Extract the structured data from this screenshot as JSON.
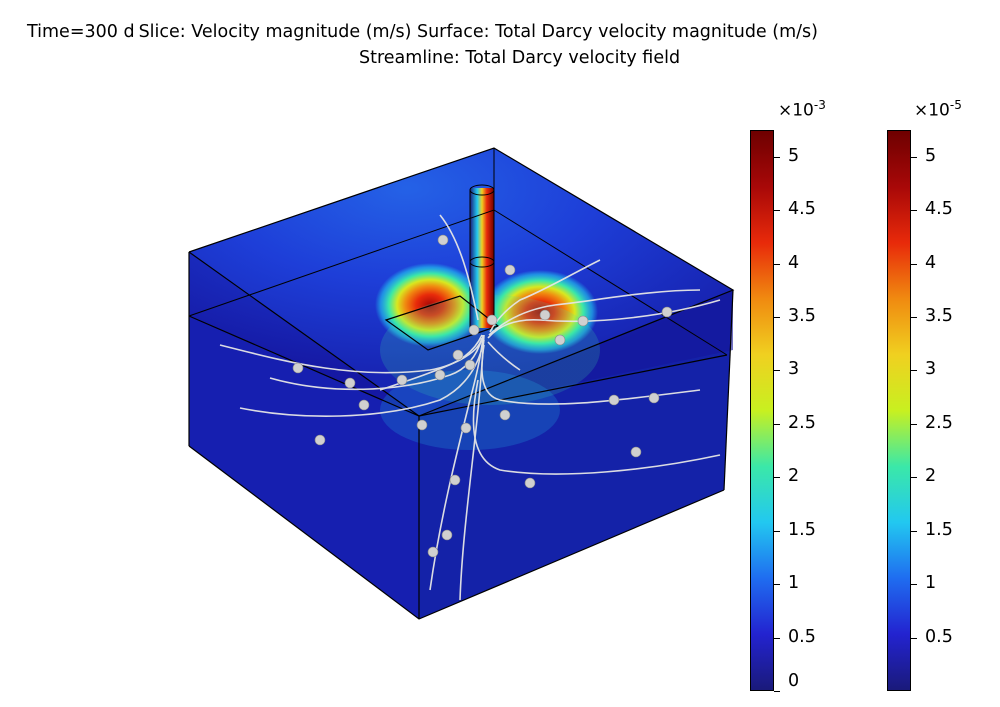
{
  "title": {
    "line1_time": "Time=300 d",
    "line1_rest": "Slice: Velocity magnitude (m/s)  Surface: Total Darcy velocity magnitude (m/s)",
    "line2": "Streamline: Total Darcy velocity field"
  },
  "chart_data": {
    "type": "heatmap",
    "description_source": "3D slice + surface + streamline plot",
    "colormap": "rainbow",
    "colorbars": [
      {
        "name": "Slice",
        "multiplier": "×10",
        "exponent": "-3",
        "range": [
          0,
          5.25
        ],
        "ticks": [
          0,
          0.5,
          1,
          1.5,
          2,
          2.5,
          3,
          3.5,
          4,
          4.5,
          5
        ],
        "tick_labels": [
          "0",
          "0.5",
          "1",
          "1.5",
          "2",
          "2.5",
          "3",
          "3.5",
          "4",
          "4.5",
          "5"
        ]
      },
      {
        "name": "Surface",
        "multiplier": "×10",
        "exponent": "-5",
        "range": [
          0,
          5.25
        ],
        "ticks": [
          0.5,
          1,
          1.5,
          2,
          2.5,
          3,
          3.5,
          4,
          4.5,
          5
        ],
        "tick_labels": [
          "0.5",
          "1",
          "1.5",
          "2",
          "2.5",
          "3",
          "3.5",
          "4",
          "4.5",
          "5"
        ]
      }
    ]
  },
  "colors": {
    "cmap": [
      "#1a1a7a",
      "#2323d0",
      "#1f6df0",
      "#22c8f0",
      "#3be8a8",
      "#c8f020",
      "#f0d020",
      "#f08a10",
      "#e82a0a",
      "#a80808",
      "#6e0000"
    ],
    "domain_dark": "#10148a",
    "streamline": "#e6e6e6"
  }
}
